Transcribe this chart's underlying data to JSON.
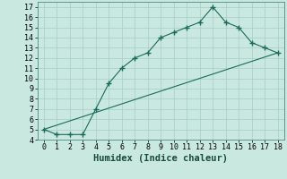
{
  "xlabel": "Humidex (Indice chaleur)",
  "bg_color": "#c8e8e0",
  "line_color": "#1a6b5a",
  "grid_color": "#a8ccc8",
  "curve_x": [
    0,
    1,
    2,
    3,
    4,
    5,
    6,
    7,
    8,
    9,
    10,
    11,
    12,
    13,
    14,
    15,
    16,
    17,
    18
  ],
  "curve_y": [
    5.0,
    4.5,
    4.5,
    4.5,
    7.0,
    9.5,
    11.0,
    12.0,
    12.5,
    14.0,
    14.5,
    15.0,
    15.5,
    17.0,
    15.5,
    15.0,
    13.5,
    13.0,
    12.5
  ],
  "line_x": [
    0,
    18
  ],
  "line_y": [
    5.0,
    12.5
  ],
  "xlim": [
    -0.5,
    18.5
  ],
  "ylim": [
    4.0,
    17.5
  ],
  "xticks": [
    0,
    1,
    2,
    3,
    4,
    5,
    6,
    7,
    8,
    9,
    10,
    11,
    12,
    13,
    14,
    15,
    16,
    17,
    18
  ],
  "yticks": [
    4,
    5,
    6,
    7,
    8,
    9,
    10,
    11,
    12,
    13,
    14,
    15,
    16,
    17
  ],
  "tick_fontsize": 6,
  "xlabel_fontsize": 7.5
}
